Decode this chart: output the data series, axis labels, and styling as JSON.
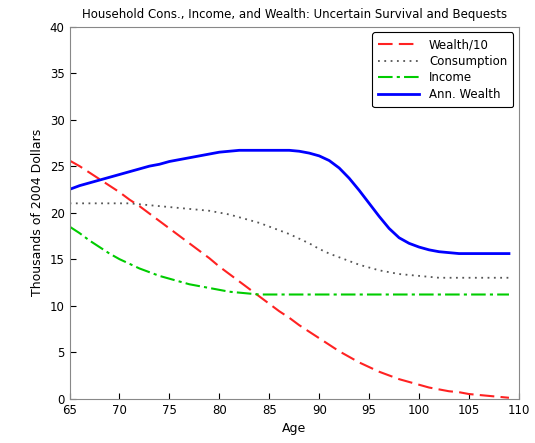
{
  "title": "Household Cons., Income, and Wealth: Uncertain Survival and Bequests",
  "xlabel": "Age",
  "ylabel": "Thousands of 2004 Dollars",
  "xlim": [
    65,
    110
  ],
  "ylim": [
    0,
    40
  ],
  "yticks": [
    0,
    5,
    10,
    15,
    20,
    25,
    30,
    35,
    40
  ],
  "xticks": [
    65,
    70,
    75,
    80,
    85,
    90,
    95,
    100,
    105,
    110
  ],
  "ages": [
    65,
    66,
    67,
    68,
    69,
    70,
    71,
    72,
    73,
    74,
    75,
    76,
    77,
    78,
    79,
    80,
    81,
    82,
    83,
    84,
    85,
    86,
    87,
    88,
    89,
    90,
    91,
    92,
    93,
    94,
    95,
    96,
    97,
    98,
    99,
    100,
    101,
    102,
    103,
    104,
    105,
    106,
    107,
    108,
    109
  ],
  "wealth10": [
    25.6,
    25.0,
    24.3,
    23.6,
    22.9,
    22.2,
    21.4,
    20.7,
    19.9,
    19.1,
    18.3,
    17.5,
    16.7,
    15.9,
    15.1,
    14.2,
    13.4,
    12.6,
    11.8,
    11.0,
    10.2,
    9.4,
    8.7,
    7.9,
    7.2,
    6.5,
    5.8,
    5.1,
    4.5,
    3.9,
    3.4,
    2.9,
    2.5,
    2.1,
    1.8,
    1.5,
    1.2,
    1.0,
    0.8,
    0.7,
    0.5,
    0.4,
    0.3,
    0.2,
    0.1
  ],
  "consumption": [
    21.0,
    21.0,
    21.0,
    21.0,
    21.0,
    21.0,
    21.0,
    20.9,
    20.8,
    20.7,
    20.6,
    20.5,
    20.4,
    20.3,
    20.2,
    20.0,
    19.8,
    19.5,
    19.2,
    18.9,
    18.5,
    18.1,
    17.7,
    17.2,
    16.7,
    16.1,
    15.6,
    15.2,
    14.8,
    14.4,
    14.1,
    13.8,
    13.6,
    13.4,
    13.3,
    13.2,
    13.1,
    13.0,
    13.0,
    13.0,
    13.0,
    13.0,
    13.0,
    13.0,
    13.0
  ],
  "income": [
    18.5,
    17.8,
    17.0,
    16.3,
    15.6,
    15.0,
    14.5,
    14.0,
    13.6,
    13.2,
    12.9,
    12.6,
    12.3,
    12.1,
    11.9,
    11.7,
    11.5,
    11.4,
    11.3,
    11.2,
    11.2,
    11.2,
    11.2,
    11.2,
    11.2,
    11.2,
    11.2,
    11.2,
    11.2,
    11.2,
    11.2,
    11.2,
    11.2,
    11.2,
    11.2,
    11.2,
    11.2,
    11.2,
    11.2,
    11.2,
    11.2,
    11.2,
    11.2,
    11.2,
    11.2
  ],
  "ann_wealth": [
    22.5,
    22.9,
    23.2,
    23.5,
    23.8,
    24.1,
    24.4,
    24.7,
    25.0,
    25.2,
    25.5,
    25.7,
    25.9,
    26.1,
    26.3,
    26.5,
    26.6,
    26.7,
    26.7,
    26.7,
    26.7,
    26.7,
    26.7,
    26.6,
    26.4,
    26.1,
    25.6,
    24.8,
    23.7,
    22.4,
    21.0,
    19.6,
    18.3,
    17.3,
    16.7,
    16.3,
    16.0,
    15.8,
    15.7,
    15.6,
    15.6,
    15.6,
    15.6,
    15.6,
    15.6
  ],
  "wealth10_color": "#ff2222",
  "consumption_color": "#555555",
  "income_color": "#00cc00",
  "ann_wealth_color": "#0000ff",
  "legend_labels": [
    "Wealth/10",
    "Consumption",
    "Income",
    "Ann. Wealth"
  ],
  "background_color": "#ffffff"
}
